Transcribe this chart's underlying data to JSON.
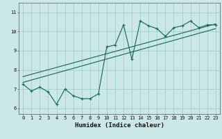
{
  "xlabel": "Humidex (Indice chaleur)",
  "bg_color": "#cce8e6",
  "grid_color": "#99ccc8",
  "line_color": "#1a6b5a",
  "x_data": [
    0,
    1,
    2,
    3,
    4,
    5,
    6,
    7,
    8,
    9,
    10,
    11,
    12,
    13,
    14,
    15,
    16,
    17,
    18,
    19,
    20,
    21,
    22,
    23
  ],
  "y_main": [
    7.25,
    6.9,
    7.1,
    6.85,
    6.2,
    7.0,
    6.65,
    6.5,
    6.5,
    6.75,
    9.2,
    9.3,
    10.35,
    8.55,
    10.55,
    10.3,
    10.15,
    9.75,
    10.2,
    10.3,
    10.55,
    10.2,
    10.35,
    10.35
  ],
  "trend1_x": [
    0,
    23
  ],
  "trend1_y": [
    7.35,
    10.15
  ],
  "trend2_x": [
    0,
    23
  ],
  "trend2_y": [
    7.65,
    10.4
  ],
  "xlim": [
    -0.5,
    23.5
  ],
  "ylim": [
    5.7,
    11.5
  ],
  "yticks": [
    6,
    7,
    8,
    9,
    10,
    11
  ],
  "xticks": [
    0,
    1,
    2,
    3,
    4,
    5,
    6,
    7,
    8,
    9,
    10,
    11,
    12,
    13,
    14,
    15,
    16,
    17,
    18,
    19,
    20,
    21,
    22,
    23
  ],
  "tick_fontsize": 5.0,
  "xlabel_fontsize": 6.5
}
